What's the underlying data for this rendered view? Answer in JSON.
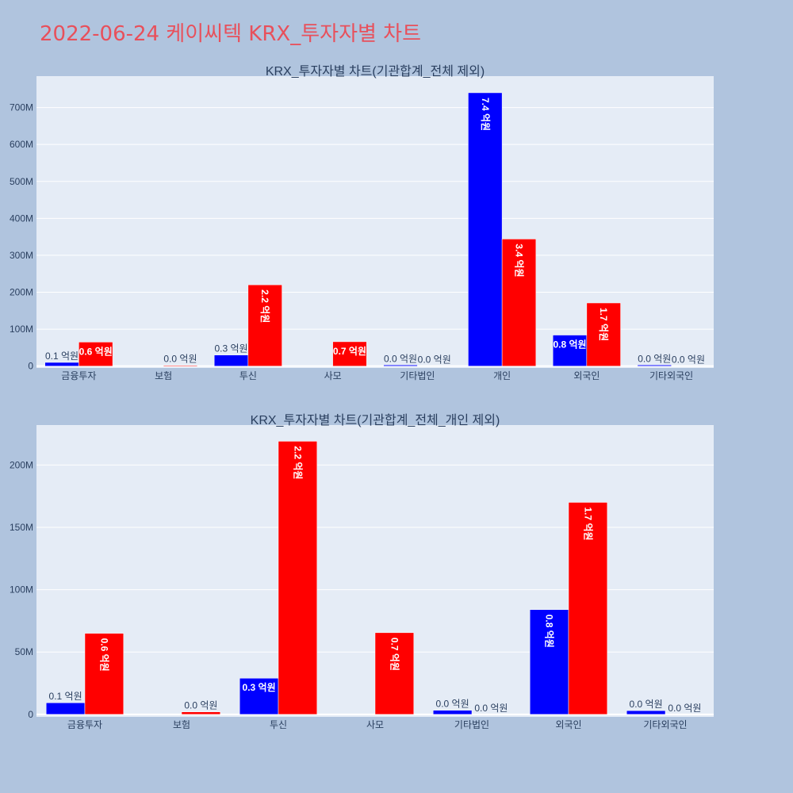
{
  "page": {
    "title": "2022-06-24 케이씨텍 KRX_투자자별 차트"
  },
  "colors": {
    "series_1": "#0000ff",
    "series_2": "#ff0000",
    "plot_background": "#e5ecf6",
    "page_background": "#b0c4de",
    "title": "#e8505b",
    "text": "#2a3f5f"
  },
  "chart_data": [
    {
      "type": "bar",
      "title": "KRX_투자자별 차트(기관합계_전체 제외)",
      "categories": [
        "금융투자",
        "보험",
        "투신",
        "사모",
        "기타법인",
        "개인",
        "외국인",
        "기타외국인"
      ],
      "series": [
        {
          "color": "#0000ff",
          "values": [
            10000000,
            0,
            30000000,
            0,
            3000000,
            740000000,
            84000000,
            3000000
          ],
          "labels": [
            "0.1 억원",
            "",
            "0.3 억원",
            "",
            "0.0 억원",
            "7.4 억원",
            "0.8 억원",
            "0.0 억원"
          ],
          "label_inside": [
            false,
            false,
            false,
            false,
            false,
            true,
            true,
            false
          ]
        },
        {
          "color": "#ff0000",
          "values": [
            65000000,
            2000000,
            220000000,
            66000000,
            0,
            344000000,
            171000000,
            0
          ],
          "labels": [
            "0.6 억원",
            "0.0 억원",
            "2.2 억원",
            "0.7 억원",
            "0.0 억원",
            "3.4 억원",
            "1.7 억원",
            "0.0 억원"
          ],
          "label_inside": [
            true,
            false,
            true,
            true,
            false,
            true,
            true,
            false
          ]
        }
      ],
      "ylim": [
        -5000000,
        785000000
      ],
      "yticks": [
        0,
        100000000,
        200000000,
        300000000,
        400000000,
        500000000,
        600000000,
        700000000
      ],
      "ytick_labels": [
        "0",
        "100M",
        "200M",
        "300M",
        "400M",
        "500M",
        "600M",
        "700M"
      ],
      "grid": true,
      "legend": "none"
    },
    {
      "type": "bar",
      "title": "KRX_투자자별 차트(기관합계_전체_개인 제외)",
      "categories": [
        "금융투자",
        "보험",
        "투신",
        "사모",
        "기타법인",
        "외국인",
        "기타외국인"
      ],
      "series": [
        {
          "color": "#0000ff",
          "values": [
            9300000,
            0,
            29000000,
            0,
            3300000,
            84000000,
            3000000
          ],
          "labels": [
            "0.1 억원",
            "",
            "0.3 억원",
            "",
            "0.0 억원",
            "0.8 억원",
            "0.0 억원"
          ],
          "label_inside": [
            false,
            false,
            true,
            false,
            false,
            true,
            false
          ]
        },
        {
          "color": "#ff0000",
          "values": [
            65000000,
            2000000,
            219000000,
            65500000,
            0,
            170000000,
            0
          ],
          "labels": [
            "0.6 억원",
            "0.0 억원",
            "2.2 억원",
            "0.7 억원",
            "0.0 억원",
            "1.7 억원",
            "0.0 억원"
          ],
          "label_inside": [
            true,
            false,
            true,
            true,
            false,
            true,
            false
          ]
        }
      ],
      "ylim": [
        -2000000,
        232000000
      ],
      "yticks": [
        0,
        50000000,
        100000000,
        150000000,
        200000000
      ],
      "ytick_labels": [
        "0",
        "50M",
        "100M",
        "150M",
        "200M"
      ],
      "grid": true,
      "legend": "none"
    }
  ]
}
